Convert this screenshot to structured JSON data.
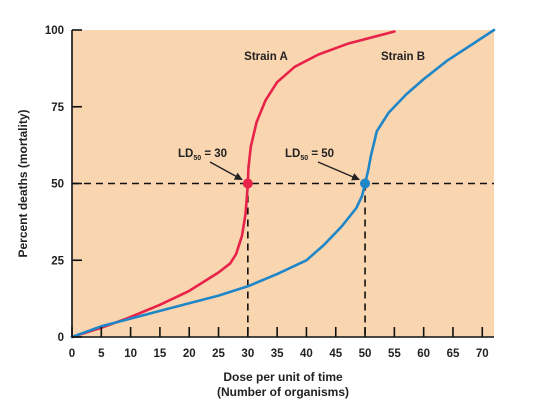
{
  "chart_data": {
    "type": "line",
    "title": "",
    "xlabel": "Dose per unit of time",
    "xlabel_line2": "(Number of organisms)",
    "ylabel": "Percent deaths (mortality)",
    "xlim": [
      0,
      72
    ],
    "ylim": [
      0,
      100
    ],
    "x_ticks": [
      0,
      5,
      10,
      15,
      20,
      25,
      30,
      35,
      40,
      45,
      50,
      55,
      60,
      65,
      70
    ],
    "y_ticks": [
      0,
      25,
      50,
      75,
      100
    ],
    "grid": false,
    "legend": "none",
    "background_color": "#f9d5b0",
    "series": [
      {
        "name": "Strain A",
        "color": "#e8234a",
        "points": [
          [
            0,
            0
          ],
          [
            5,
            3
          ],
          [
            10,
            6.5
          ],
          [
            15,
            10.5
          ],
          [
            20,
            15
          ],
          [
            25,
            21
          ],
          [
            27,
            24
          ],
          [
            28,
            27
          ],
          [
            29,
            33
          ],
          [
            29.6,
            40
          ],
          [
            29.9,
            47
          ],
          [
            30,
            50
          ],
          [
            30.1,
            55
          ],
          [
            30.5,
            62
          ],
          [
            31.5,
            70
          ],
          [
            33,
            77
          ],
          [
            35,
            83
          ],
          [
            38,
            88
          ],
          [
            42,
            92
          ],
          [
            47,
            95.5
          ],
          [
            53,
            98.5
          ],
          [
            55,
            99.5
          ]
        ]
      },
      {
        "name": "Strain B",
        "color": "#1f86c8",
        "points": [
          [
            0,
            0
          ],
          [
            5,
            3.5
          ],
          [
            10,
            6
          ],
          [
            15,
            8.5
          ],
          [
            20,
            11
          ],
          [
            25,
            13.5
          ],
          [
            30,
            16.5
          ],
          [
            35,
            20.5
          ],
          [
            40,
            25
          ],
          [
            43,
            30
          ],
          [
            46,
            36
          ],
          [
            48.5,
            42
          ],
          [
            49.5,
            46
          ],
          [
            50,
            50
          ],
          [
            50.5,
            54
          ],
          [
            51,
            59
          ],
          [
            52,
            67
          ],
          [
            54,
            73
          ],
          [
            57,
            79
          ],
          [
            60,
            84
          ],
          [
            64,
            90
          ],
          [
            68,
            95
          ],
          [
            72,
            100
          ]
        ]
      }
    ],
    "markers": [
      {
        "series": "Strain A",
        "x": 30,
        "y": 50
      },
      {
        "series": "Strain B",
        "x": 50,
        "y": 50
      }
    ],
    "reference_lines": {
      "y": 50,
      "x_a": 30,
      "x_b": 50
    },
    "annotations": [
      {
        "id": "strain-a-label",
        "text": "Strain A"
      },
      {
        "id": "strain-b-label",
        "text": "Strain B"
      },
      {
        "id": "ld50-a",
        "prefix": "LD",
        "sub": "50",
        "suffix": " = 30"
      },
      {
        "id": "ld50-b",
        "prefix": "LD",
        "sub": "50",
        "suffix": " = 50"
      }
    ]
  }
}
